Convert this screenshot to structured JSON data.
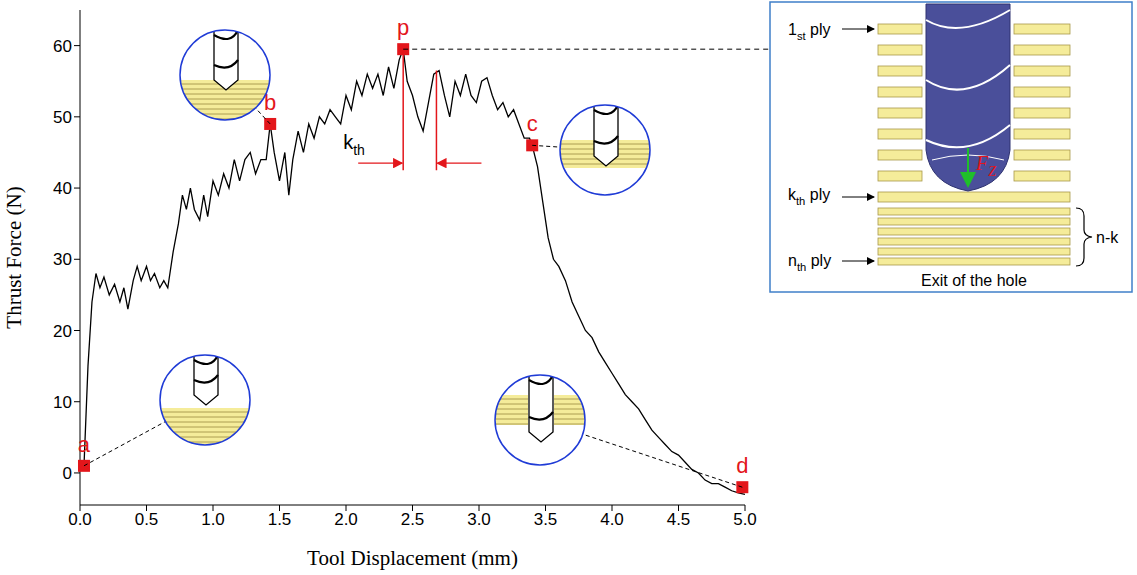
{
  "chart_data": {
    "type": "line",
    "x_label": "Tool Displacement (mm)",
    "y_label": "Thrust Force (N)",
    "xlim": [
      0,
      5
    ],
    "ylim": [
      -4.5,
      65
    ],
    "xticks": [
      {
        "value": 0,
        "label": "0.0"
      },
      0.5,
      {
        "value": 1,
        "label": "1.0"
      },
      1.5,
      {
        "value": 2,
        "label": "2.0"
      },
      2.5,
      {
        "value": 3,
        "label": "3.0"
      },
      3.5,
      {
        "value": 4,
        "label": "4.0"
      },
      4.5,
      {
        "value": 5,
        "label": "5.0"
      }
    ],
    "yticks": [
      0,
      10,
      20,
      30,
      40,
      50,
      60
    ],
    "grid": false,
    "color": "#000000",
    "x": [
      0.02,
      0.03,
      0.06,
      0.09,
      0.12,
      0.15,
      0.18,
      0.22,
      0.26,
      0.3,
      0.33,
      0.36,
      0.4,
      0.43,
      0.46,
      0.5,
      0.53,
      0.56,
      0.6,
      0.63,
      0.66,
      0.7,
      0.74,
      0.77,
      0.8,
      0.83,
      0.86,
      0.9,
      0.93,
      0.96,
      1.0,
      1.04,
      1.08,
      1.12,
      1.16,
      1.2,
      1.24,
      1.28,
      1.32,
      1.36,
      1.4,
      1.43,
      1.46,
      1.5,
      1.54,
      1.57,
      1.6,
      1.64,
      1.68,
      1.72,
      1.76,
      1.8,
      1.84,
      1.88,
      1.92,
      1.96,
      2.0,
      2.04,
      2.08,
      2.12,
      2.16,
      2.2,
      2.24,
      2.28,
      2.32,
      2.36,
      2.4,
      2.43,
      2.46,
      2.5,
      2.54,
      2.58,
      2.62,
      2.66,
      2.7,
      2.74,
      2.78,
      2.82,
      2.86,
      2.9,
      2.94,
      2.98,
      3.02,
      3.06,
      3.1,
      3.14,
      3.18,
      3.22,
      3.26,
      3.3,
      3.34,
      3.38,
      3.4,
      3.44,
      3.48,
      3.52,
      3.56,
      3.6,
      3.65,
      3.7,
      3.75,
      3.8,
      3.85,
      3.9,
      3.95,
      4.0,
      4.05,
      4.1,
      4.15,
      4.2,
      4.25,
      4.3,
      4.35,
      4.4,
      4.45,
      4.5,
      4.55,
      4.6,
      4.65,
      4.7,
      4.75,
      4.8,
      4.85,
      4.9,
      4.95,
      5.0
    ],
    "values": [
      0.5,
      1,
      15,
      24,
      28,
      26,
      27.5,
      25,
      26.5,
      24,
      26,
      23,
      27,
      29,
      27,
      29,
      27,
      28,
      26,
      27,
      26,
      31,
      35,
      39,
      37,
      40,
      37,
      35.5,
      39,
      36,
      41,
      39,
      42,
      40,
      44,
      41,
      44,
      45,
      42,
      44,
      44,
      49,
      45,
      41,
      45,
      39,
      44,
      48,
      45,
      49,
      47,
      50,
      49,
      51,
      50,
      49,
      53,
      51,
      55,
      53,
      56,
      54,
      56,
      53,
      57,
      54,
      58,
      59.5,
      55,
      53,
      50,
      48,
      52,
      56,
      56.5,
      53,
      50,
      55,
      53,
      56,
      53,
      52,
      55,
      55.5,
      53,
      51,
      52,
      50,
      51,
      49,
      47,
      47,
      46,
      43,
      38,
      33,
      30,
      29,
      27,
      24,
      22,
      20,
      19,
      17,
      15.5,
      14,
      12.5,
      11,
      10,
      9,
      7.5,
      6,
      5,
      4,
      3,
      2.5,
      1.5,
      0.5,
      0,
      -1,
      -1.5,
      -1.5,
      -2,
      -2.5,
      -2.8,
      -3
    ],
    "points": {
      "color": "#e3161b",
      "marker": "square",
      "items": [
        {
          "label": "a",
          "x": 0.03,
          "y": 1
        },
        {
          "label": "b",
          "x": 1.43,
          "y": 49
        },
        {
          "label": "p",
          "x": 2.43,
          "y": 59.5
        },
        {
          "label": "c",
          "x": 3.4,
          "y": 46
        },
        {
          "label": "d",
          "x": 4.98,
          "y": -2
        }
      ]
    },
    "kth_marker": {
      "text": [
        "k",
        "th"
      ],
      "x": [
        2.43,
        2.68
      ],
      "tops": [
        59.5,
        56.5
      ],
      "bottom": 42.5,
      "arrow_y": 43.5
    }
  },
  "diagram": {
    "plies": [
      [
        "1",
        "st",
        " ply"
      ],
      [
        "k",
        "th",
        " ply"
      ],
      [
        "n",
        "th",
        " ply"
      ]
    ],
    "bracket": "n-k",
    "force": [
      "F",
      "Z"
    ],
    "caption": "Exit of the hole"
  }
}
